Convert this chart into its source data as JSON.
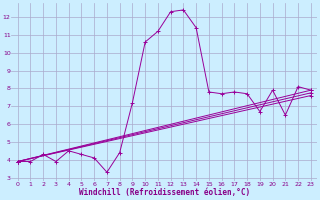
{
  "xlabel": "Windchill (Refroidissement éolien,°C)",
  "ylabel": "",
  "bg_color": "#cceeff",
  "grid_color": "#aaaacc",
  "line_color": "#990099",
  "xlim": [
    -0.5,
    23.5
  ],
  "ylim": [
    2.8,
    12.8
  ],
  "yticks": [
    3,
    4,
    5,
    6,
    7,
    8,
    9,
    10,
    11,
    12
  ],
  "xticks": [
    0,
    1,
    2,
    3,
    4,
    5,
    6,
    7,
    8,
    9,
    10,
    11,
    12,
    13,
    14,
    15,
    16,
    17,
    18,
    19,
    20,
    21,
    22,
    23
  ],
  "lines": [
    {
      "x": [
        0,
        1,
        2,
        3,
        4,
        5,
        6,
        7,
        8,
        9,
        10,
        11,
        12,
        13,
        14,
        15,
        16,
        17,
        18,
        19,
        20,
        21,
        22,
        23
      ],
      "y": [
        3.9,
        3.9,
        4.3,
        3.9,
        4.5,
        4.3,
        4.1,
        3.3,
        4.4,
        7.2,
        10.6,
        11.2,
        12.3,
        12.4,
        11.4,
        7.8,
        7.7,
        7.8,
        7.7,
        6.7,
        7.9,
        6.5,
        8.1,
        7.9
      ]
    },
    {
      "x": [
        0,
        23
      ],
      "y": [
        3.9,
        7.9
      ]
    },
    {
      "x": [
        0,
        23
      ],
      "y": [
        3.9,
        7.75
      ]
    },
    {
      "x": [
        0,
        23
      ],
      "y": [
        3.9,
        7.6
      ]
    }
  ]
}
